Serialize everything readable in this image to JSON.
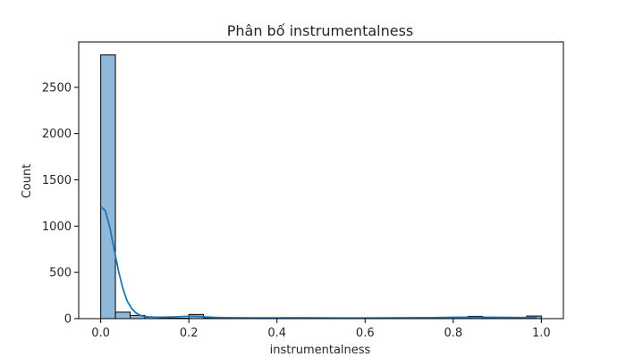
{
  "chart_data": {
    "type": "bar",
    "subtype": "histogram-with-kde",
    "title": "Phân bố instrumentalness",
    "xlabel": "instrumentalness",
    "ylabel": "Count",
    "xlim": [
      -0.05,
      1.05
    ],
    "ylim": [
      0,
      2990
    ],
    "xticks": [
      0.0,
      0.2,
      0.4,
      0.6,
      0.8,
      1.0
    ],
    "xtick_labels": [
      "0.0",
      "0.2",
      "0.4",
      "0.6",
      "0.8",
      "1.0"
    ],
    "yticks": [
      0,
      500,
      1000,
      1500,
      2000,
      2500
    ],
    "ytick_labels": [
      "0",
      "500",
      "1000",
      "1500",
      "2000",
      "2500"
    ],
    "bin_edges": [
      0.0,
      0.0333,
      0.0667,
      0.1,
      0.1333,
      0.1667,
      0.2,
      0.2333,
      0.2667,
      0.3,
      0.3333,
      0.3667,
      0.4,
      0.4333,
      0.4667,
      0.5,
      0.5333,
      0.5667,
      0.6,
      0.6333,
      0.6667,
      0.7,
      0.7333,
      0.7667,
      0.8,
      0.8333,
      0.8667,
      0.9,
      0.9333,
      0.9667,
      1.0
    ],
    "counts": [
      2850,
      70,
      35,
      15,
      6,
      5,
      45,
      8,
      4,
      5,
      3,
      3,
      3,
      4,
      6,
      3,
      3,
      3,
      3,
      2,
      3,
      3,
      5,
      7,
      15,
      25,
      8,
      6,
      6,
      28
    ],
    "kde": {
      "x": [
        0.0,
        0.01,
        0.02,
        0.03,
        0.04,
        0.05,
        0.06,
        0.07,
        0.08,
        0.09,
        0.1,
        0.12,
        0.14,
        0.16,
        0.18,
        0.2,
        0.22,
        0.24,
        0.26,
        0.28,
        0.3,
        0.35,
        0.4,
        0.45,
        0.5,
        0.55,
        0.6,
        0.65,
        0.7,
        0.75,
        0.8,
        0.85,
        0.9,
        0.95,
        0.99
      ],
      "y": [
        1210,
        1170,
        1000,
        760,
        520,
        330,
        190,
        110,
        62,
        35,
        22,
        16,
        16,
        18,
        22,
        25,
        23,
        18,
        13,
        10,
        9,
        8,
        8,
        9,
        8,
        7,
        7,
        8,
        9,
        11,
        14,
        16,
        14,
        12,
        12
      ]
    },
    "colors": {
      "bar_fill": "#8fb8da",
      "bar_edge": "#000000",
      "kde_line": "#1f77b4"
    },
    "grid": false,
    "legend": "none"
  }
}
